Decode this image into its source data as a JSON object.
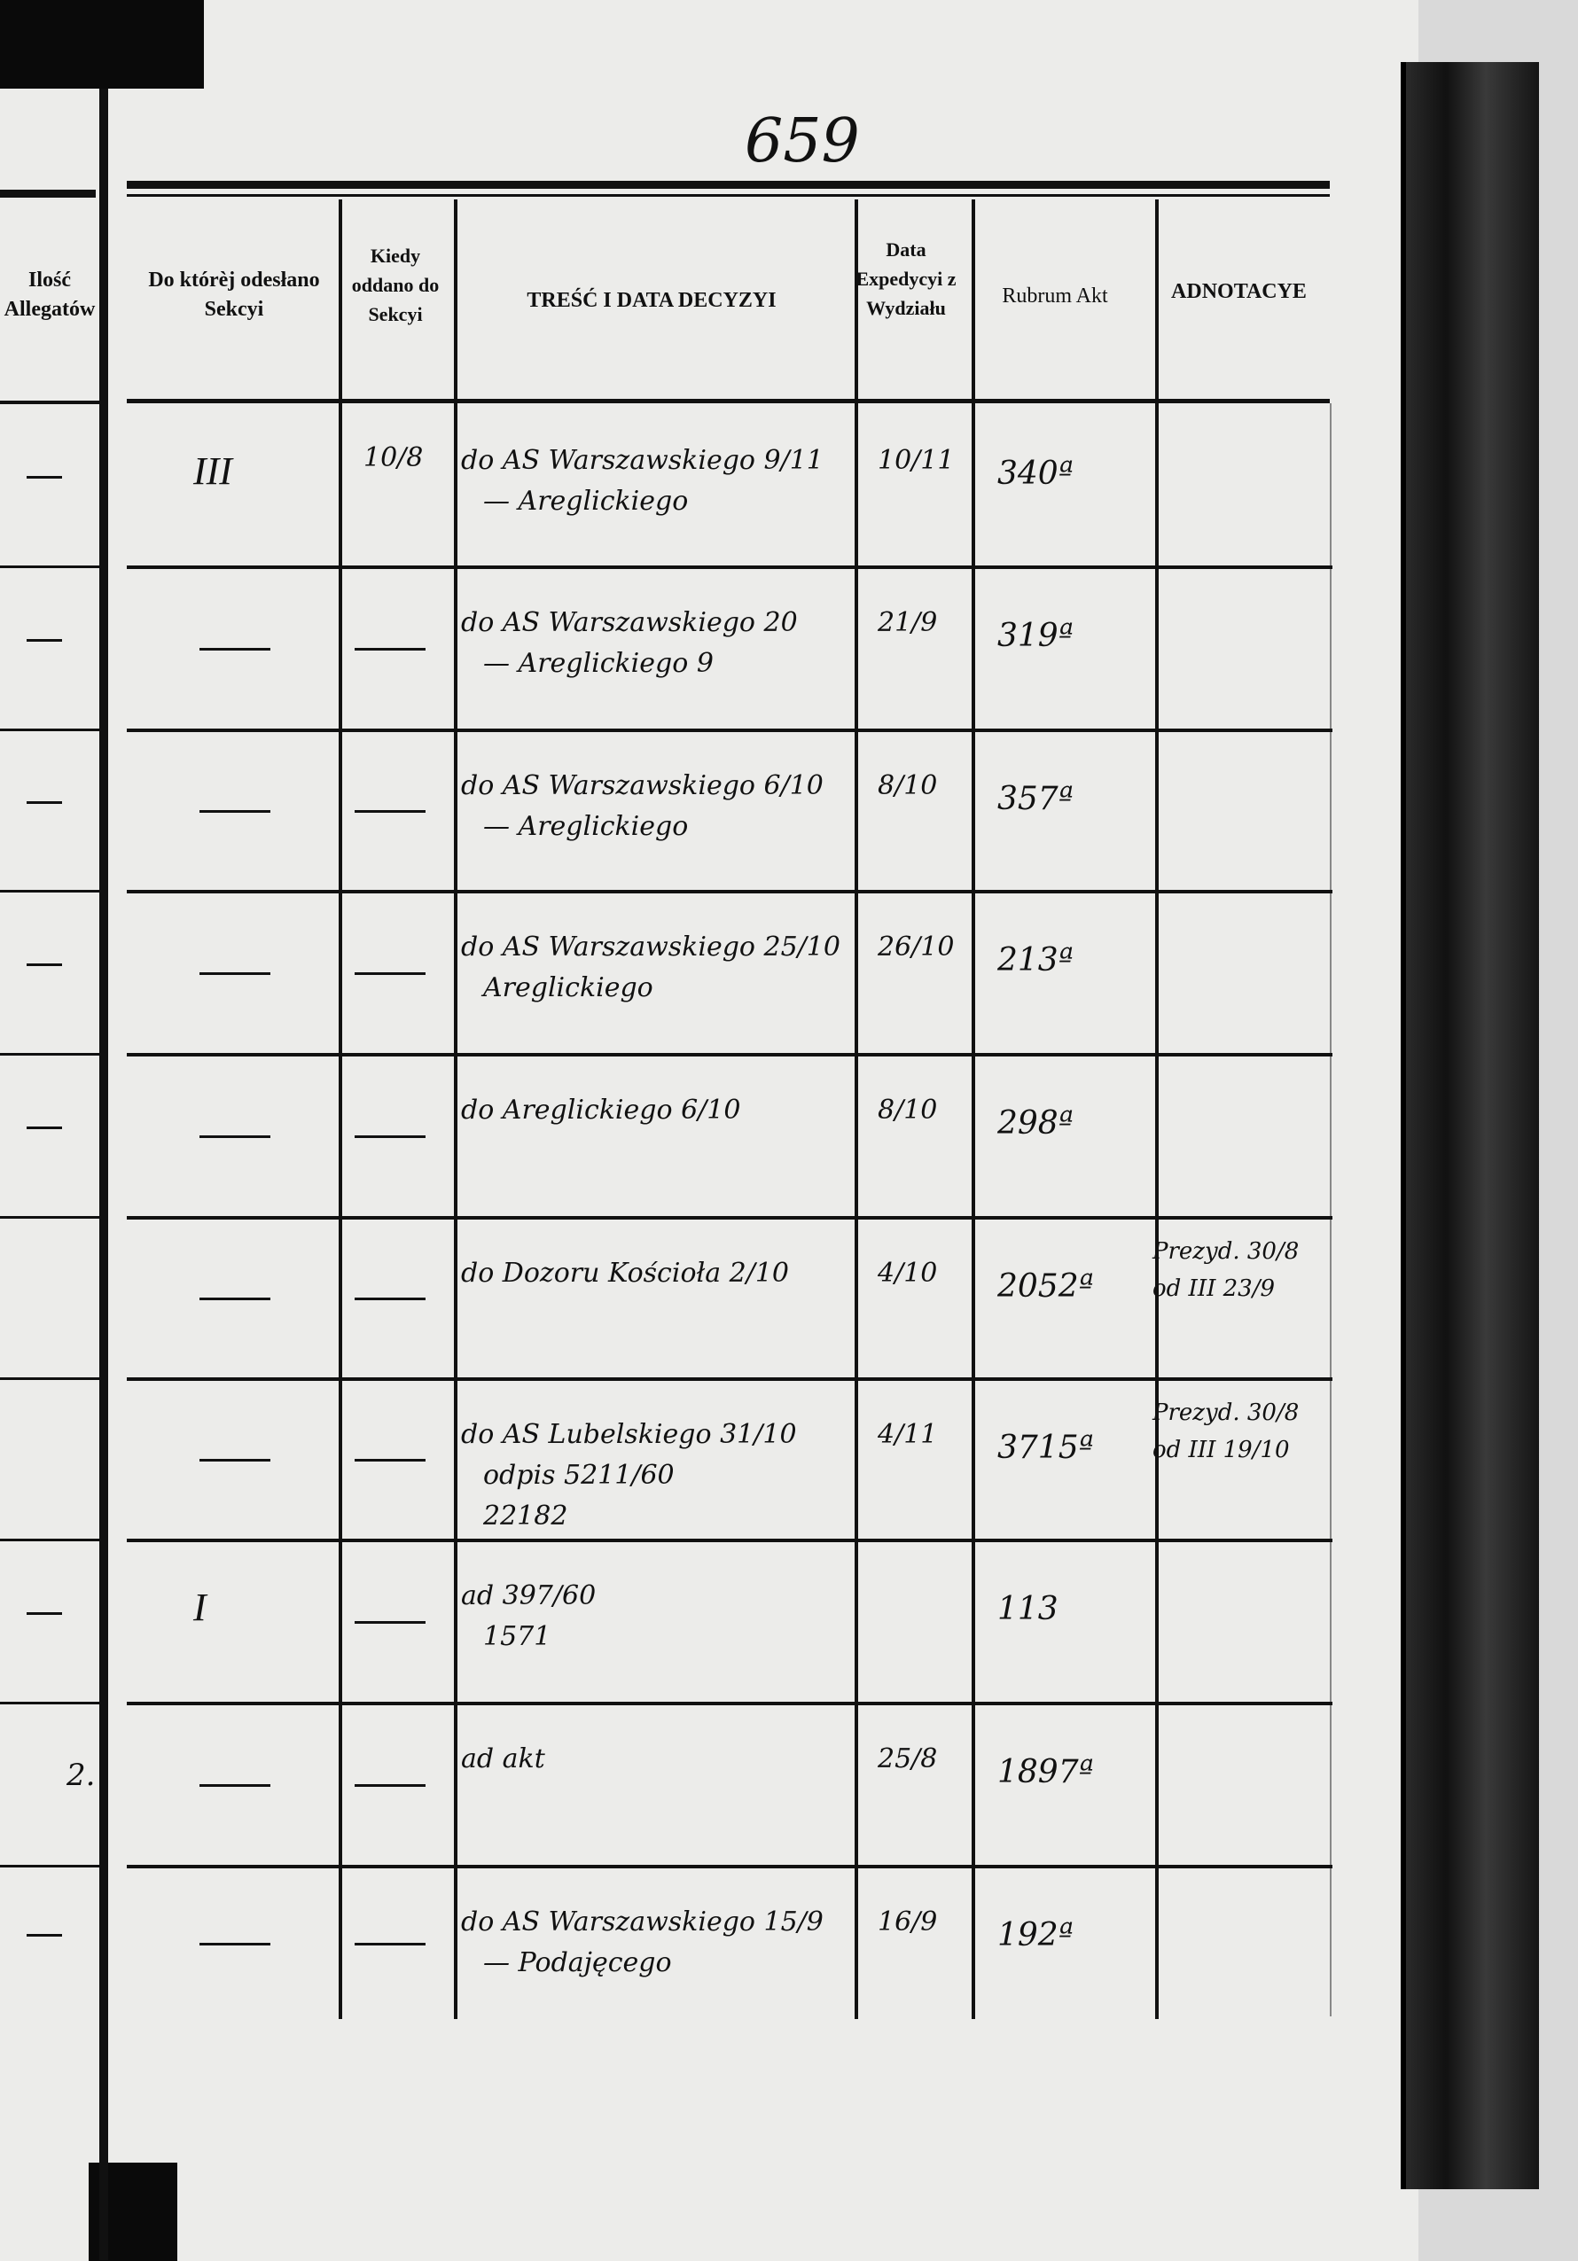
{
  "page_number": "659",
  "headers": {
    "allegaty": "Ilość Allegatów",
    "sekcja": "Do którèj odesłano Sekcyi",
    "kiedy": "Kiedy oddano do Sekcyi",
    "tresc": "TREŚĆ I DATA DECYZYI",
    "expedycja": "Data Expedycyi z Wydziału",
    "rubrum": "Rubrum Akt",
    "adnotacye": "ADNOTACYE"
  },
  "rows": [
    {
      "allegaty": "—",
      "sekcja": "III",
      "kiedy": "10/8",
      "tresc": [
        "do AS Warszawskiego  9/11",
        "— Areglickiego"
      ],
      "data": "10/11",
      "rubrum": "340ª",
      "adnotacye": []
    },
    {
      "allegaty": "—",
      "sekcja": "—",
      "kiedy": "—",
      "tresc": [
        "do AS Warszawskiego  20",
        "— Areglickiego  9"
      ],
      "data": "21/9",
      "rubrum": "319ª",
      "adnotacye": []
    },
    {
      "allegaty": "—",
      "sekcja": "—",
      "kiedy": "—",
      "tresc": [
        "do AS Warszawskiego  6/10",
        "— Areglickiego"
      ],
      "data": "8/10",
      "rubrum": "357ª",
      "adnotacye": []
    },
    {
      "allegaty": "—",
      "sekcja": "—",
      "kiedy": "—",
      "tresc": [
        "do AS Warszawskiego  25/10",
        "Areglickiego"
      ],
      "data": "26/10",
      "rubrum": "213ª",
      "adnotacye": []
    },
    {
      "allegaty": "—",
      "sekcja": "—",
      "kiedy": "—",
      "tresc": [
        "do Areglickiego  6/10"
      ],
      "data": "8/10",
      "rubrum": "298ª",
      "adnotacye": []
    },
    {
      "allegaty": "",
      "sekcja": "—",
      "kiedy": "—",
      "tresc": [
        "do Dozoru Kościoła  2/10"
      ],
      "data": "4/10",
      "rubrum": "2052ª",
      "adnotacye": [
        "Prezyd. 30/8",
        "od III 23/9"
      ]
    },
    {
      "allegaty": "",
      "sekcja": "—",
      "kiedy": "—",
      "tresc": [
        "do AS Lubelskiego  31/10",
        "odpis 5211/60",
        "22182"
      ],
      "data": "4/11",
      "rubrum": "3715ª",
      "adnotacye": [
        "Prezyd. 30/8",
        "od III 19/10"
      ]
    },
    {
      "allegaty": "—",
      "sekcja": "I",
      "kiedy": "—",
      "tresc": [
        "ad 397/60",
        "1571"
      ],
      "data": "",
      "rubrum": "113",
      "adnotacye": []
    },
    {
      "allegaty": "2.",
      "sekcja": "—",
      "kiedy": "—",
      "tresc": [
        "ad akt"
      ],
      "data": "25/8",
      "rubrum": "1897ª",
      "adnotacye": []
    },
    {
      "allegaty": "—",
      "sekcja": "—",
      "kiedy": "—",
      "tresc": [
        "do AS Warszawskiego  15/9",
        "— Podajęcego"
      ],
      "data": "16/9",
      "rubrum": "192ª",
      "adnotacye": []
    }
  ]
}
